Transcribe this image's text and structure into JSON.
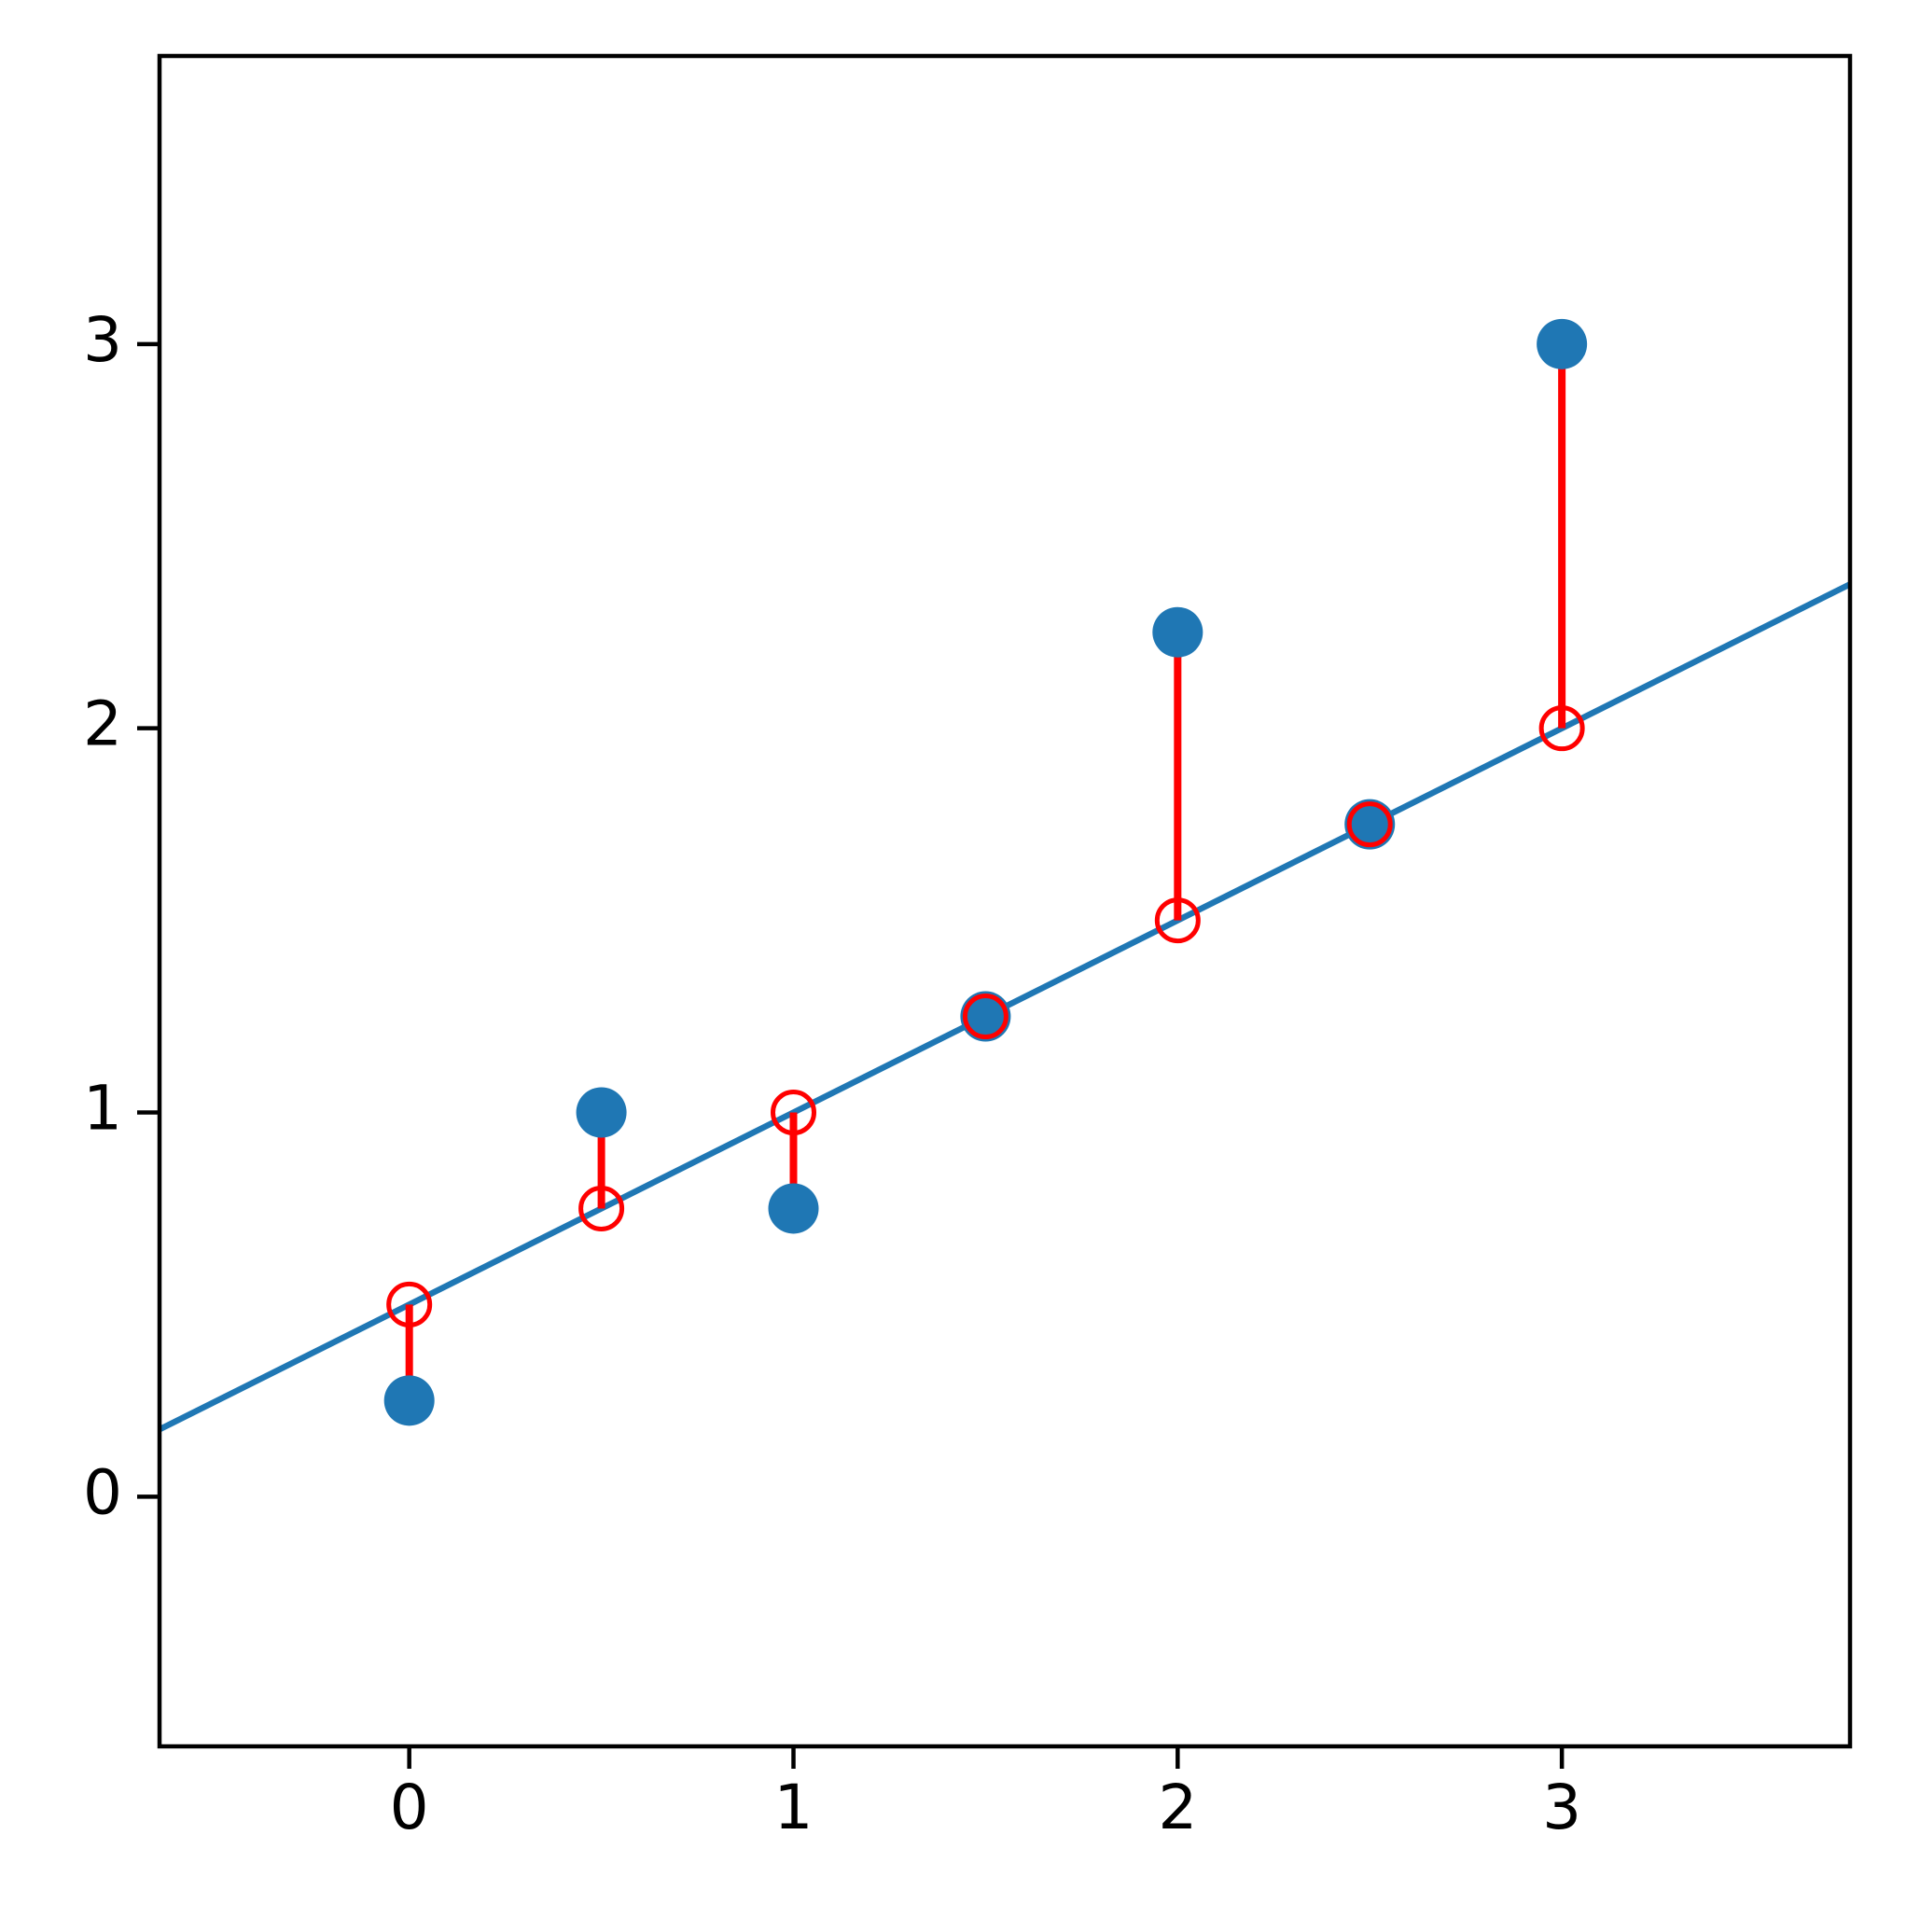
{
  "chart_data": {
    "type": "scatter",
    "x": [
      0,
      0.5,
      1,
      1.5,
      2,
      2.5,
      3
    ],
    "series": [
      {
        "color": "#1f77b4",
        "marker": "filled",
        "values": [
          0.25,
          1,
          0.75,
          1.25,
          2.25,
          1.75,
          3
        ]
      },
      {
        "color": "#ff0000",
        "marker": "open",
        "values": [
          0.5,
          0.75,
          1,
          1.25,
          1.5,
          1.75,
          2
        ]
      }
    ],
    "residual_color": "#ff0000",
    "line": {
      "color": "#1f77b4",
      "x": [
        -0.65,
        3.75
      ],
      "values": [
        0.175,
        2.375
      ]
    },
    "xlim": [
      -0.65,
      3.75
    ],
    "ylim": [
      -0.65,
      3.75
    ],
    "xticks": [
      0,
      1,
      2,
      3
    ],
    "yticks": [
      0,
      1,
      2,
      3
    ],
    "grid": false
  }
}
